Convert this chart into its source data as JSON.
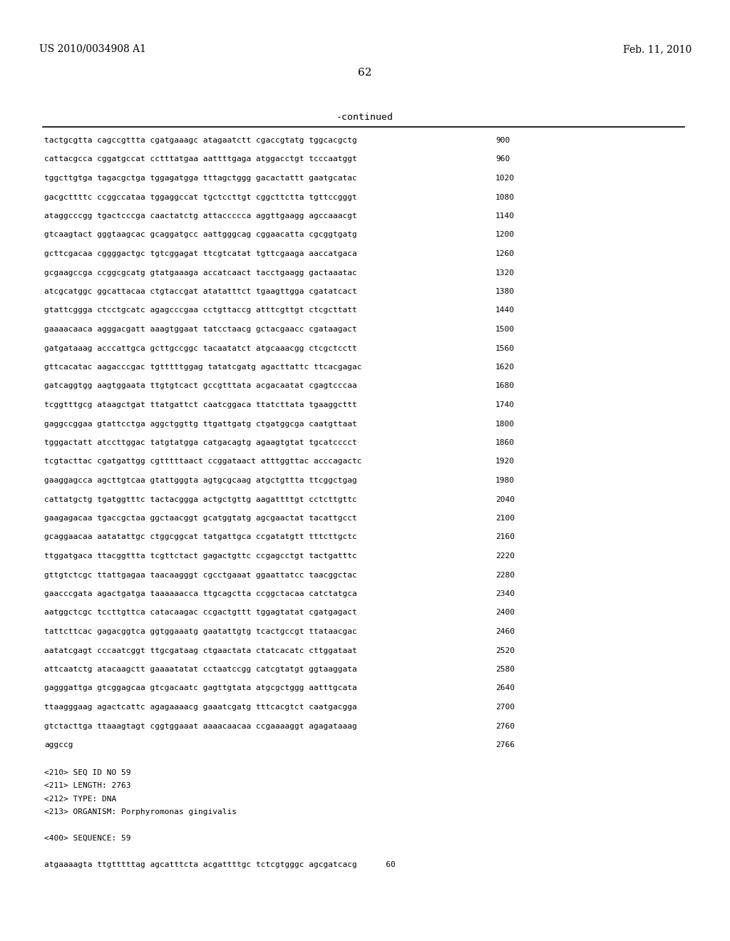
{
  "header_left": "US 2010/0034908 A1",
  "header_right": "Feb. 11, 2010",
  "page_number": "62",
  "continued_label": "-continued",
  "background_color": "#ffffff",
  "text_color": "#000000",
  "sequence_lines": [
    [
      "tactgcgtta cagccgttta cgatgaaagc atagaatctt cgaccgtatg tggcacgctg",
      "900"
    ],
    [
      "cattacgcca cggatgccat cctttatgaa aattttgaga atggacctgt tcccaatggt",
      "960"
    ],
    [
      "tggcttgtga tagacgctga tggagatgga tttagctggg gacactattt gaatgcatac",
      "1020"
    ],
    [
      "gacgcttttc ccggccataa tggaggccat tgctccttgt cggcttctta tgttccgggt",
      "1080"
    ],
    [
      "ataggcccgg tgactcccga caactatctg attaccccca aggttgaagg agccaaacgt",
      "1140"
    ],
    [
      "gtcaagtact gggtaagcac gcaggatgcc aattgggcag cggaacatta cgcggtgatg",
      "1200"
    ],
    [
      "gcttcgacaa cggggactgc tgtcggagat ttcgtcatat tgttcgaaga aaccatgaca",
      "1260"
    ],
    [
      "gcgaagccga ccggcgcatg gtatgaaaga accatcaact tacctgaagg gactaaatac",
      "1320"
    ],
    [
      "atcgcatggc ggcattacaa ctgtaccgat atatatttct tgaagttgga cgatatcact",
      "1380"
    ],
    [
      "gtattcggga ctcctgcatc agagcccgaa cctgttaccg atttcgttgt ctcgcttatt",
      "1440"
    ],
    [
      "gaaaacaaca agggacgatt aaagtggaat tatcctaacg gctacgaacc cgataagact",
      "1500"
    ],
    [
      "gatgataaag acccattgca gcttgccggc tacaatatct atgcaaacgg ctcgctcctt",
      "1560"
    ],
    [
      "gttcacatac aagacccgac tgtttttggag tatatcgatg agacttattc ttcacgagac",
      "1620"
    ],
    [
      "gatcaggtgg aagtggaata ttgtgtcact gccgtttata acgacaatat cgagtcccaa",
      "1680"
    ],
    [
      "tcggtttgcg ataagctgat ttatgattct caatcggaca ttatcttata tgaaggcttt",
      "1740"
    ],
    [
      "gaggccggaa gtattcctga aggctggttg ttgattgatg ctgatggcga caatgttaat",
      "1800"
    ],
    [
      "tgggactatt atccttggac tatgtatgga catgacagtg agaagtgtat tgcatcccct",
      "1860"
    ],
    [
      "tcgtacttac cgatgattgg cgtttttaact ccggataact atttggttac acccagactc",
      "1920"
    ],
    [
      "gaaggagcca agcttgtcaa gtattgggta agtgcgcaag atgctgttta ttcggctgag",
      "1980"
    ],
    [
      "cattatgctg tgatggtttc tactacggga actgctgttg aagattttgt cctcttgttc",
      "2040"
    ],
    [
      "gaagagacaa tgaccgctaa ggctaacggt gcatggtatg agcgaactat tacattgcct",
      "2100"
    ],
    [
      "gcaggaacaa aatatattgc ctggcggcat tatgattgca ccgatatgtt tttcttgctc",
      "2160"
    ],
    [
      "ttggatgaca ttacggttta tcgttctact gagactgttc ccgagcctgt tactgatttc",
      "2220"
    ],
    [
      "gttgtctcgc ttattgagaa taacaagggt cgcctgaaat ggaattatcc taacggctac",
      "2280"
    ],
    [
      "gaacccgata agactgatga taaaaaacca ttgcagctta ccggctacaa catctatgca",
      "2340"
    ],
    [
      "aatggctcgc tccttgttca catacaagac ccgactgttt tggagtatat cgatgagact",
      "2400"
    ],
    [
      "tattcttcac gagacggtca ggtggaaatg gaatattgtg tcactgccgt ttataacgac",
      "2460"
    ],
    [
      "aatatcgagt cccaatcggt ttgcgataag ctgaactata ctatcacatc cttggataat",
      "2520"
    ],
    [
      "attcaatctg atacaagctt gaaaatatat cctaatccgg catcgtatgt ggtaaggata",
      "2580"
    ],
    [
      "gagggattga gtcggagcaa gtcgacaatc gagttgtata atgcgctggg aatttgcata",
      "2640"
    ],
    [
      "ttaagggaag agactcattc agagaaaacg gaaatcgatg tttcacgtct caatgacgga",
      "2700"
    ],
    [
      "gtctacttga ttaaagtagt cggtggaaat aaaacaacaa ccgaaaaggt agagataaag",
      "2760"
    ],
    [
      "aggccg",
      "2766"
    ]
  ],
  "footer_lines": [
    "<210> SEQ ID NO 59",
    "<211> LENGTH: 2763",
    "<212> TYPE: DNA",
    "<213> ORGANISM: Porphyromonas gingivalis",
    "",
    "<400> SEQUENCE: 59",
    "",
    "atgaaaagta ttgtttttag agcatttcta acgattttgc tctcgtgggc agcgatcacg      60"
  ]
}
